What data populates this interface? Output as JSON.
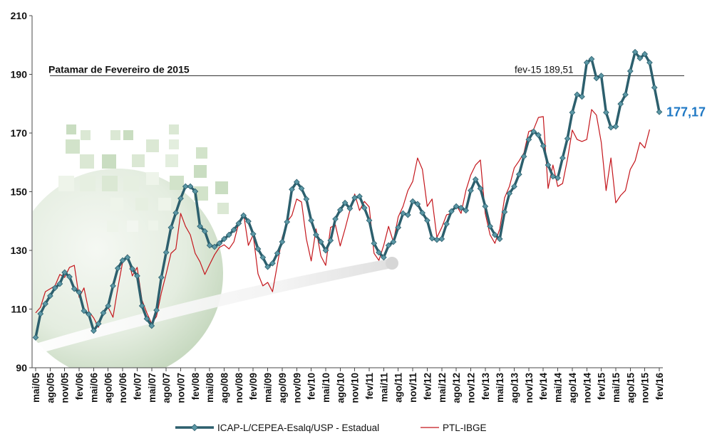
{
  "chart_data": {
    "type": "line",
    "x_tick_labels": [
      "mai/05",
      "ago/05",
      "nov/05",
      "fev/06",
      "mai/06",
      "ago/06",
      "nov/06",
      "fev/07",
      "mai/07",
      "ago/07",
      "nov/07",
      "fev/08",
      "mai/08",
      "ago/08",
      "nov/08",
      "fev/09",
      "mai/09",
      "ago/09",
      "nov/09",
      "fev/10",
      "mai/10",
      "ago/10",
      "nov/10",
      "fev/11",
      "mai/11",
      "ago/11",
      "nov/11",
      "fev/12",
      "mai/12",
      "ago/12",
      "nov/12",
      "fev/13",
      "mai/13",
      "ago/13",
      "nov/13",
      "fev/14",
      "mai/14",
      "ago/14",
      "nov/14",
      "fev/15",
      "mai/15",
      "ago/15",
      "nov/15",
      "fev/16"
    ],
    "ylim": [
      90,
      210
    ],
    "yticks": [
      90,
      110,
      130,
      150,
      170,
      190,
      210
    ],
    "grid": false,
    "legend": "bottom",
    "series": [
      {
        "name": "ICAP-L/CEPEA-Esalq/USP - Estadual",
        "color": "#2c5f6d",
        "marker": "diamond",
        "marker_color": "#5b97a5",
        "values": [
          100.3,
          108.4,
          111.8,
          114.5,
          117.2,
          118.6,
          122.5,
          121.0,
          116.9,
          115.7,
          109.4,
          108.2,
          102.6,
          105.0,
          108.7,
          111.1,
          117.9,
          123.9,
          126.6,
          127.6,
          123.7,
          121.3,
          111.1,
          106.7,
          104.3,
          109.6,
          120.8,
          129.3,
          137.8,
          142.8,
          147.7,
          151.8,
          151.8,
          150.1,
          138.2,
          136.5,
          131.7,
          131.2,
          132.4,
          133.9,
          135.3,
          137.0,
          139.2,
          141.9,
          139.9,
          135.6,
          130.5,
          127.6,
          124.4,
          125.6,
          129.0,
          132.9,
          139.7,
          150.8,
          153.3,
          151.1,
          147.5,
          140.2,
          135.3,
          132.9,
          130.0,
          133.4,
          140.7,
          143.8,
          146.2,
          144.3,
          147.9,
          148.4,
          144.5,
          140.2,
          132.4,
          129.3,
          127.6,
          131.7,
          132.9,
          137.8,
          142.6,
          142.1,
          146.7,
          145.8,
          142.8,
          140.2,
          134.1,
          133.6,
          133.9,
          139.0,
          143.3,
          145.0,
          144.5,
          143.6,
          150.4,
          154.2,
          151.1,
          145.0,
          138.2,
          135.3,
          133.9,
          143.1,
          149.4,
          151.8,
          155.9,
          162.0,
          167.8,
          170.5,
          169.3,
          165.6,
          159.1,
          155.2,
          154.7,
          161.5,
          168.1,
          177.0,
          183.1,
          182.4,
          194.0,
          195.2,
          188.7,
          189.51,
          177.0,
          171.9,
          172.2,
          179.9,
          183.1,
          191.1,
          197.6,
          195.5,
          196.9,
          194.0,
          185.5,
          177.17
        ]
      },
      {
        "name": "PTL-IBGE",
        "color": "#c4161c",
        "marker": "none",
        "values": [
          108.7,
          110.6,
          115.9,
          116.9,
          117.9,
          121.8,
          120.8,
          124.2,
          124.9,
          114.0,
          117.2,
          109.2,
          107.0,
          103.8,
          108.7,
          110.6,
          107.2,
          117.2,
          126.1,
          128.5,
          121.3,
          124.2,
          113.0,
          108.7,
          105.0,
          107.5,
          115.5,
          122.0,
          129.0,
          130.5,
          142.6,
          138.2,
          135.3,
          129.0,
          126.1,
          121.8,
          125.2,
          128.5,
          131.0,
          131.9,
          130.5,
          132.9,
          139.2,
          142.6,
          131.7,
          135.3,
          122.0,
          117.9,
          119.1,
          115.9,
          125.2,
          134.4,
          139.7,
          141.9,
          147.5,
          146.5,
          133.9,
          126.4,
          137.3,
          128.1,
          124.9,
          137.8,
          138.7,
          131.5,
          137.3,
          143.6,
          149.2,
          143.6,
          146.7,
          144.8,
          129.0,
          126.6,
          131.7,
          138.2,
          132.9,
          141.4,
          145.0,
          150.4,
          153.5,
          161.5,
          157.6,
          145.0,
          147.5,
          134.4,
          137.8,
          142.1,
          142.6,
          145.5,
          142.6,
          150.4,
          155.7,
          159.1,
          160.8,
          142.6,
          135.3,
          132.4,
          137.3,
          147.9,
          151.8,
          158.1,
          160.5,
          163.2,
          170.5,
          171.2,
          175.3,
          175.6,
          151.1,
          159.1,
          151.8,
          152.8,
          161.0,
          171.0,
          167.8,
          167.1,
          167.8,
          178.0,
          176.1,
          166.8,
          150.4,
          161.5,
          146.2,
          148.7,
          150.4,
          157.6,
          160.5,
          166.8,
          164.9,
          171.2,
          null,
          null
        ]
      }
    ],
    "reference_line": {
      "label": "Patamar de Fevereiro de 2015",
      "value": 189.51,
      "value_label": "fev-15 189,51"
    },
    "end_label": {
      "text": "177,17",
      "color": "#1f78c4"
    }
  }
}
